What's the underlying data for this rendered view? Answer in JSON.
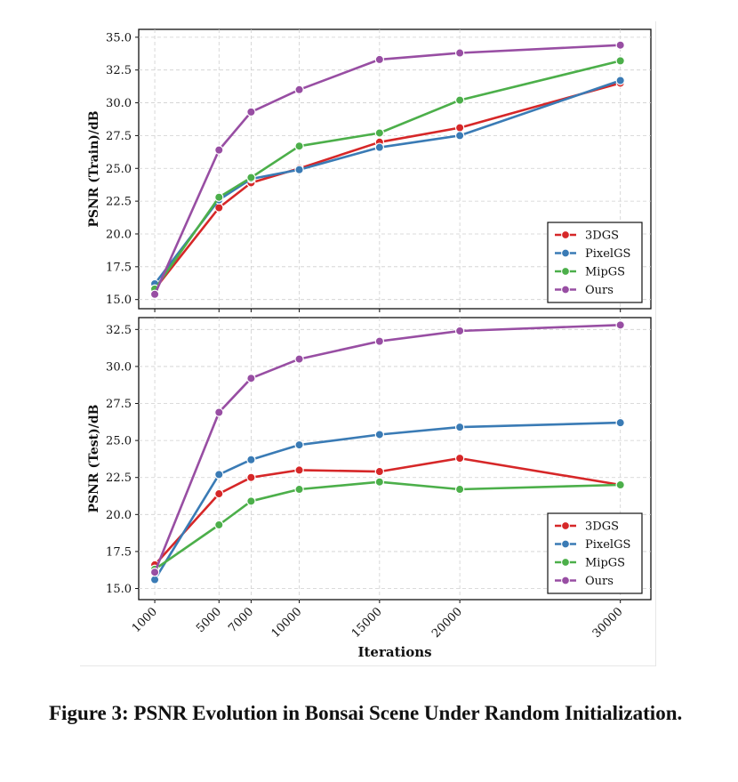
{
  "caption": "Figure 3: PSNR Evolution in Bonsai Scene Under Random Initialization.",
  "chart_data": [
    {
      "type": "line",
      "ylabel": "PSNR (Train)/dB",
      "ylim": [
        14.3,
        35.6
      ],
      "yticks": [
        "15.0",
        "17.5",
        "20.0",
        "22.5",
        "25.0",
        "27.5",
        "30.0",
        "32.5",
        "35.0"
      ],
      "x": [
        1000,
        5000,
        7000,
        10000,
        15000,
        20000,
        30000
      ],
      "grid": true,
      "legend": "bottom-right",
      "series": [
        {
          "name": "3DGS",
          "color": "#d62728",
          "values": [
            15.8,
            22.0,
            23.9,
            25.0,
            27.0,
            28.1,
            31.5
          ]
        },
        {
          "name": "PixelGS",
          "color": "#3a7bb5",
          "values": [
            16.2,
            22.6,
            24.2,
            24.9,
            26.6,
            27.5,
            31.7
          ]
        },
        {
          "name": "MipGS",
          "color": "#4caf4a",
          "values": [
            15.8,
            22.8,
            24.3,
            26.7,
            27.7,
            30.2,
            33.2
          ]
        },
        {
          "name": "Ours",
          "color": "#984ea3",
          "values": [
            15.4,
            26.4,
            29.3,
            31.0,
            33.3,
            33.8,
            34.4
          ]
        }
      ]
    },
    {
      "type": "line",
      "ylabel": "PSNR (Test)/dB",
      "xlabel": "Iterations",
      "ylim": [
        14.25,
        33.3
      ],
      "yticks": [
        "15.0",
        "17.5",
        "20.0",
        "22.5",
        "25.0",
        "27.5",
        "30.0",
        "32.5"
      ],
      "x": [
        1000,
        5000,
        7000,
        10000,
        15000,
        20000,
        30000
      ],
      "xticks": [
        "1000",
        "5000",
        "7000",
        "10000",
        "15000",
        "20000",
        "30000"
      ],
      "grid": true,
      "legend": "bottom-right",
      "series": [
        {
          "name": "3DGS",
          "color": "#d62728",
          "values": [
            16.6,
            21.4,
            22.5,
            23.0,
            22.9,
            23.8,
            22.0
          ]
        },
        {
          "name": "PixelGS",
          "color": "#3a7bb5",
          "values": [
            15.6,
            22.7,
            23.7,
            24.7,
            25.4,
            25.9,
            26.2
          ]
        },
        {
          "name": "MipGS",
          "color": "#4caf4a",
          "values": [
            16.3,
            19.3,
            20.9,
            21.7,
            22.2,
            21.7,
            22.0
          ]
        },
        {
          "name": "Ours",
          "color": "#984ea3",
          "values": [
            16.1,
            26.9,
            29.2,
            30.5,
            31.7,
            32.4,
            32.8
          ]
        }
      ]
    }
  ]
}
